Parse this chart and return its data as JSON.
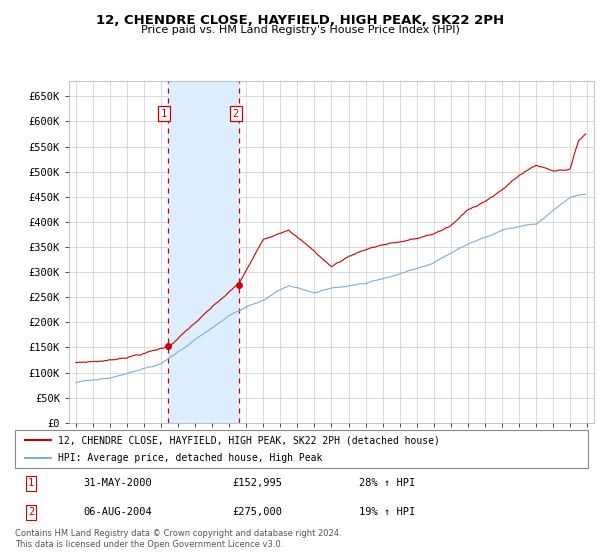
{
  "title": "12, CHENDRE CLOSE, HAYFIELD, HIGH PEAK, SK22 2PH",
  "subtitle": "Price paid vs. HM Land Registry's House Price Index (HPI)",
  "footer": "Contains HM Land Registry data © Crown copyright and database right 2024.\nThis data is licensed under the Open Government Licence v3.0.",
  "legend_line1": "12, CHENDRE CLOSE, HAYFIELD, HIGH PEAK, SK22 2PH (detached house)",
  "legend_line2": "HPI: Average price, detached house, High Peak",
  "sale1_label": "1",
  "sale1_date": "31-MAY-2000",
  "sale1_price": "£152,995",
  "sale1_hpi": "28% ↑ HPI",
  "sale2_label": "2",
  "sale2_date": "06-AUG-2004",
  "sale2_price": "£275,000",
  "sale2_hpi": "19% ↑ HPI",
  "ylim": [
    0,
    680000
  ],
  "yticks": [
    0,
    50000,
    100000,
    150000,
    200000,
    250000,
    300000,
    350000,
    400000,
    450000,
    500000,
    550000,
    600000,
    650000
  ],
  "red_color": "#cc0000",
  "blue_color": "#7bafd4",
  "grid_color": "#cccccc",
  "shade_color": "#ddeeff",
  "marker1_x": 2000.42,
  "marker1_y": 152995,
  "marker2_x": 2004.59,
  "marker2_y": 275000,
  "vline1_x": 2000.42,
  "vline2_x": 2004.59,
  "xlim_left": 1994.6,
  "xlim_right": 2025.4
}
